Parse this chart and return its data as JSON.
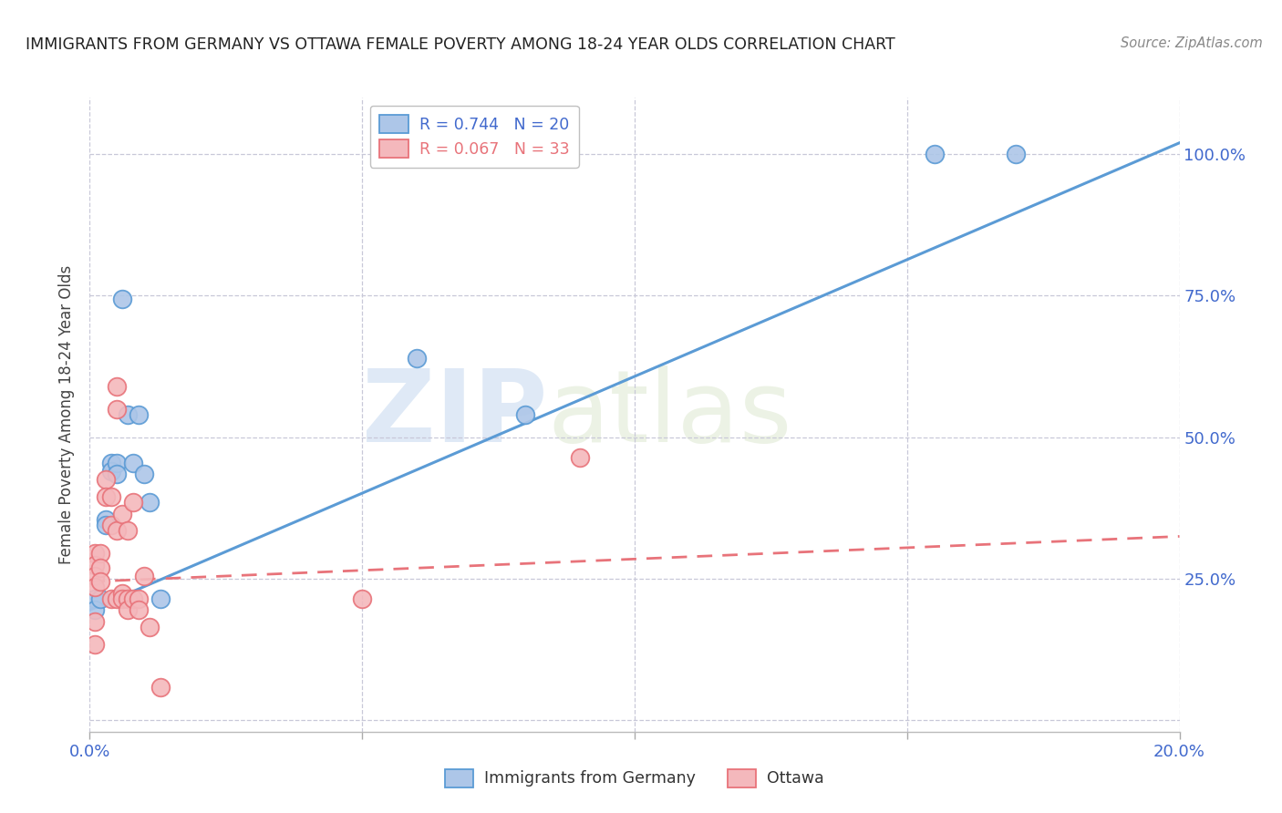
{
  "title": "IMMIGRANTS FROM GERMANY VS OTTAWA FEMALE POVERTY AMONG 18-24 YEAR OLDS CORRELATION CHART",
  "source": "Source: ZipAtlas.com",
  "ylabel": "Female Poverty Among 18-24 Year Olds",
  "watermark_zip": "ZIP",
  "watermark_atlas": "atlas",
  "legend1_label": "R = 0.744   N = 20",
  "legend2_label": "R = 0.067   N = 33",
  "legend1_series": "Immigrants from Germany",
  "legend2_series": "Ottawa",
  "blue_scatter_x": [
    0.001,
    0.001,
    0.002,
    0.003,
    0.003,
    0.004,
    0.004,
    0.005,
    0.005,
    0.006,
    0.007,
    0.008,
    0.009,
    0.01,
    0.011,
    0.013,
    0.06,
    0.08,
    0.155,
    0.17
  ],
  "blue_scatter_y": [
    0.215,
    0.195,
    0.215,
    0.355,
    0.345,
    0.455,
    0.44,
    0.455,
    0.435,
    0.745,
    0.54,
    0.455,
    0.54,
    0.435,
    0.385,
    0.215,
    0.64,
    0.54,
    1.0,
    1.0
  ],
  "pink_scatter_x": [
    0.001,
    0.001,
    0.001,
    0.001,
    0.001,
    0.001,
    0.002,
    0.002,
    0.002,
    0.003,
    0.003,
    0.004,
    0.004,
    0.004,
    0.005,
    0.005,
    0.005,
    0.005,
    0.006,
    0.006,
    0.006,
    0.007,
    0.007,
    0.007,
    0.008,
    0.008,
    0.009,
    0.009,
    0.01,
    0.011,
    0.013,
    0.05,
    0.09
  ],
  "pink_scatter_y": [
    0.295,
    0.275,
    0.255,
    0.235,
    0.175,
    0.135,
    0.295,
    0.27,
    0.245,
    0.425,
    0.395,
    0.395,
    0.345,
    0.215,
    0.59,
    0.55,
    0.335,
    0.215,
    0.365,
    0.225,
    0.215,
    0.335,
    0.215,
    0.195,
    0.385,
    0.215,
    0.215,
    0.195,
    0.255,
    0.165,
    0.058,
    0.215,
    0.465
  ],
  "blue_line_x": [
    0.0,
    0.2
  ],
  "blue_line_y": [
    0.195,
    1.02
  ],
  "pink_line_x": [
    0.0,
    0.2
  ],
  "pink_line_y": [
    0.245,
    0.325
  ],
  "xlim": [
    0.0,
    0.2
  ],
  "ylim": [
    -0.02,
    1.1
  ],
  "yticks": [
    0.0,
    0.25,
    0.5,
    0.75,
    1.0
  ],
  "ytick_labels": [
    "",
    "25.0%",
    "50.0%",
    "75.0%",
    "100.0%"
  ],
  "xticks": [
    0.0,
    0.05,
    0.1,
    0.15,
    0.2
  ],
  "xtick_labels": [
    "0.0%",
    "",
    "",
    "",
    "20.0%"
  ],
  "blue_line_color": "#5b9bd5",
  "blue_scatter_fill": "#adc6e8",
  "blue_scatter_edge": "#5b9bd5",
  "pink_line_color": "#e8737a",
  "pink_scatter_fill": "#f4b8bc",
  "pink_scatter_edge": "#e8737a",
  "grid_color": "#c8c8d8",
  "tick_color": "#4169cd",
  "title_color": "#222222",
  "source_color": "#888888",
  "bg_color": "#ffffff",
  "legend_edge_color": "#c0c0c0"
}
